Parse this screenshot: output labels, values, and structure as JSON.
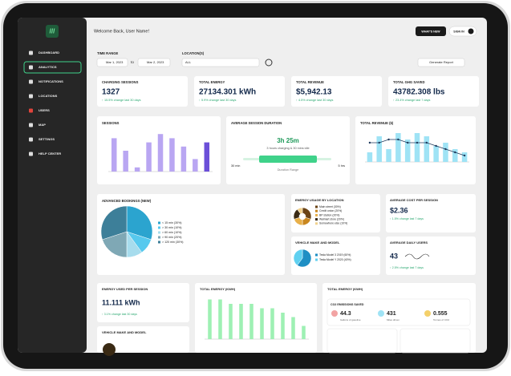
{
  "sidebar": {
    "items": [
      "DASHBOARD",
      "ANALYTICS",
      "NOTIFICATIONS",
      "LOCATIONS",
      "USERS",
      "MAP",
      "SETTINGS",
      "HELP CENTER"
    ],
    "selected": 1
  },
  "header": {
    "welcome": "Welcome Back, User Name!",
    "whats_new": "WHAT'S NEW",
    "sign_in": "SIGN IN"
  },
  "filters": {
    "time_range_label": "TIME RANGE",
    "start": "Mar 1, 2023",
    "to": "to",
    "end": "Mar 2, 2023",
    "location_label": "LOCATION(S)",
    "location": "ALL",
    "report": "Generate Report"
  },
  "kpis": [
    {
      "title": "CHARGING SESSIONS",
      "value": "1327",
      "change": "↑ 15.5% change last 30 days"
    },
    {
      "title": "TOTAL ENERGY",
      "value": "27134.301 kWh",
      "change": "↑ 5.9% change last 30 days"
    },
    {
      "title": "TOTAL REVENUE",
      "value": "$5,942.13",
      "change": "↑ 4.5% change last 30 days"
    },
    {
      "title": "TOTAL GHG SAVED",
      "value": "43782.308 lbs",
      "change": "↑ 23.4% change last 7 days"
    }
  ],
  "sessions": {
    "title": "SESSIONS",
    "values": [
      8,
      5,
      1,
      7,
      9,
      8,
      6,
      3,
      7
    ],
    "ylim": [
      0,
      10
    ],
    "color": "#b9a6f2",
    "last_color": "#6b4fd8"
  },
  "duration": {
    "title": "AVERAGE SESSION DURATION",
    "value": "3h 25m",
    "detail": "3 hours charging & 30 mins idle",
    "min": "30 min",
    "max": "5 hrs",
    "range": "Duration Range"
  },
  "revenue": {
    "title": "TOTAL REVENUE ($)",
    "bars": [
      3,
      8,
      4,
      9,
      7,
      9,
      8,
      5,
      6,
      4,
      3
    ],
    "line": [
      6,
      6,
      7,
      7,
      6,
      6,
      6,
      5,
      4,
      3,
      2
    ],
    "ylim": [
      0,
      10
    ],
    "bar_color": "#9fe3f5",
    "line_color": "#1f3a5c"
  },
  "bookings": {
    "title": "ADVANCED BOOKINGS (NEW)",
    "labels": [
      "< 15 min (30%)",
      "> 30 min (10%)",
      "> 60 min (10%)",
      "> 90 min (20%)",
      "> 120 min (30%)"
    ],
    "values": [
      30,
      10,
      10,
      20,
      30
    ],
    "colors": [
      "#2ba4cf",
      "#57c9ee",
      "#a7dced",
      "#7fa8b5",
      "#3d7f99"
    ]
  },
  "energy_location": {
    "title": "ENERGY USAGE BY LOCATION",
    "labels": [
      "Main street (30%)",
      "Credit union (20%)",
      "BP station (20%)",
      "Walmart store (20%)",
      "Somewhere else (10%)"
    ],
    "values": [
      30,
      20,
      20,
      20,
      10
    ],
    "colors": [
      "#6b4416",
      "#c9871f",
      "#e8b04a",
      "#3a2a14",
      "#f1d18c"
    ]
  },
  "avg_cost": {
    "title": "AVERAGE COST PER SESSION",
    "value": "$2.36",
    "change": "↑ 1.5% change last 7 days"
  },
  "vehicle": {
    "title": "VEHICLE MAKE AND MODEL",
    "labels": [
      "Tesla Model 3 2019 (60%)",
      "Tesla Model Y 2020 (40%)"
    ],
    "values": [
      60,
      40
    ],
    "colors": [
      "#1f8fc4",
      "#5fd0f0"
    ]
  },
  "daily_users": {
    "title": "AVERAGE DAILY USERS",
    "value": "43",
    "change": "↑ 2.5% change last 7 days"
  },
  "energy_session": {
    "title": "ENERGY USED PER SESSION",
    "value": "11.111 kWh",
    "change": "↑ 3.1% change last 30 days"
  },
  "vehicle2": {
    "title": "VEHICLE MAKE AND MODEL"
  },
  "energy_chart": {
    "title": "TOTAL ENERGY (KWH)",
    "values": [
      9,
      9,
      8,
      8,
      8,
      7,
      7,
      6,
      5,
      3
    ],
    "ylim": [
      0,
      10
    ],
    "color": "#9ef0b4"
  },
  "energy_panel": {
    "title": "TOTAL ENERGY (KWH)",
    "section": "CO2 EMISSIONS SAVED",
    "stats": [
      {
        "value": "44.3",
        "label": "Gallons of gasoline"
      },
      {
        "value": "431",
        "label": "Miles driven"
      },
      {
        "value": "0.555",
        "label": "Tonnes of CO2"
      }
    ]
  }
}
